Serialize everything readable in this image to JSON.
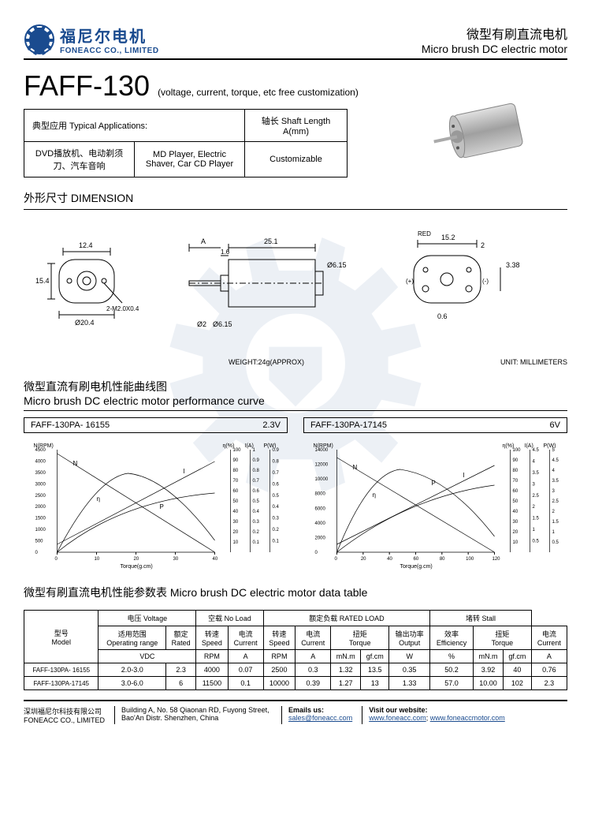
{
  "header": {
    "logo_cn": "福尼尔电机",
    "logo_en": "FONEACC CO., LIMITED",
    "title_cn": "微型有刷直流电机",
    "title_en": "Micro brush DC electric motor"
  },
  "product": {
    "model": "FAFF-130",
    "subtitle": "(voltage, current, torque, etc free customization)"
  },
  "applications": {
    "header_cn": "典型应用 Typical Applications:",
    "shaft_header": "轴长 Shaft Length A(mm)",
    "app_cn": "DVD播放机、电动剃须刀、汽车音响",
    "app_en": "MD Player, Electric Shaver, Car CD Player",
    "shaft_value": "Customizable"
  },
  "dimension": {
    "title": "外形尺寸 DIMENSION",
    "weight": "WEIGHT:24g(APPROX)",
    "unit": "UNIT: MILLIMETERS",
    "dims": {
      "w1": "12.4",
      "h1": "15.4",
      "d1": "Ø20.4",
      "screw": "2-M2.0X0.4",
      "A": "A",
      "body_l": "25.1",
      "step": "1.6",
      "shaft_d": "Ø2",
      "boss_d": "Ø6.15",
      "end_w": "15.2",
      "end_h": "3.38",
      "term": "0.6",
      "term2": "2",
      "red": "RED",
      "plus": "(+)",
      "minus": "(-)"
    }
  },
  "curves": {
    "section_cn": "微型直流有刷电机性能曲线图",
    "section_en": "Micro brush DC electric motor performance curve",
    "left": {
      "model": "FAFF-130PA- 16155",
      "voltage": "2.3V"
    },
    "right": {
      "model": "FAFF-130PA-17145",
      "voltage": "6V"
    },
    "axis_labels": {
      "y1": "N(RPM)",
      "y2": "η(%)",
      "y3": "I(A)",
      "y4": "P(W)",
      "x": "Torque(g.cm)"
    },
    "left_chart": {
      "n_max": 4500,
      "x_max": 40,
      "x_ticks": [
        0,
        10,
        20,
        30,
        40
      ],
      "n_ticks": [
        0,
        500,
        1000,
        1500,
        2000,
        2500,
        3000,
        3500,
        4000,
        4500
      ],
      "eta_ticks": [
        10,
        20,
        30,
        40,
        50,
        60,
        70,
        80,
        90,
        100
      ],
      "i_ticks": [
        0.1,
        0.2,
        0.3,
        0.4,
        0.5,
        0.6,
        0.7,
        0.8,
        0.9,
        1.0
      ],
      "p_ticks": [
        0.1,
        0.2,
        0.3,
        0.4,
        0.5,
        0.6,
        0.7,
        0.8,
        0.9
      ]
    },
    "right_chart": {
      "n_max": 14000,
      "x_max": 120,
      "x_ticks": [
        0,
        20,
        40,
        60,
        80,
        100,
        120
      ],
      "n_ticks": [
        0,
        2000,
        4000,
        6000,
        8000,
        10000,
        12000,
        14000
      ],
      "eta_ticks": [
        10,
        20,
        30,
        40,
        50,
        60,
        70,
        80,
        90,
        100
      ],
      "i_ticks": [
        0.5,
        1.0,
        1.5,
        2.0,
        2.5,
        3.0,
        3.5,
        4.0,
        4.5
      ],
      "p_ticks": [
        0.5,
        1.0,
        1.5,
        2.0,
        2.5,
        3.0,
        3.5,
        4.0,
        4.5,
        5.0
      ]
    }
  },
  "datatable": {
    "title": "微型有刷直流电机性能参数表 Micro brush DC electric motor data table",
    "headers": {
      "model": "型号\nModel",
      "voltage": "电压 Voltage",
      "noload": "空载 No Load",
      "rated": "额定负载 RATED LOAD",
      "stall": "堵转 Stall",
      "op_range": "适用范围\nOperating range",
      "rated_v": "额定\nRated",
      "speed": "转速\nSpeed",
      "current": "电流\nCurrent",
      "torque": "扭矩\nTorque",
      "output": "输出功率\nOutput",
      "eff": "效率\nEfficiency",
      "vdc": "VDC",
      "rpm": "RPM",
      "a": "A",
      "mnm": "mN.m",
      "gfcm": "gf.cm",
      "w": "W",
      "pct": "%"
    },
    "rows": [
      {
        "model": "FAFF-130PA- 16155",
        "range": "2.0-3.0",
        "rated": "2.3",
        "nl_speed": "4000",
        "nl_curr": "0.07",
        "r_speed": "2500",
        "r_curr": "0.3",
        "t_mnm": "1.32",
        "t_gfcm": "13.5",
        "out": "0.35",
        "eff": "50.2",
        "s_mnm": "3.92",
        "s_gfcm": "40",
        "s_curr": "0.76"
      },
      {
        "model": "FAFF-130PA-17145",
        "range": "3.0-6.0",
        "rated": "6",
        "nl_speed": "11500",
        "nl_curr": "0.1",
        "r_speed": "10000",
        "r_curr": "0.39",
        "t_mnm": "1.27",
        "t_gfcm": "13",
        "out": "1.33",
        "eff": "57.0",
        "s_mnm": "10.00",
        "s_gfcm": "102",
        "s_curr": "2.3"
      }
    ]
  },
  "footer": {
    "company_cn": "深圳福尼尔科技有限公司",
    "company_en": "FONEACC CO., LIMITED",
    "address": "Building A, No. 58 Qiaonan RD, Fuyong Street, Bao'An Distr. Shenzhen, China",
    "email_label": "Emails us:",
    "email": "sales@foneacc.com",
    "web_label": "Visit our website:",
    "web1": "www.foneacc.com",
    "web2": "www.foneaccmotor.com"
  }
}
